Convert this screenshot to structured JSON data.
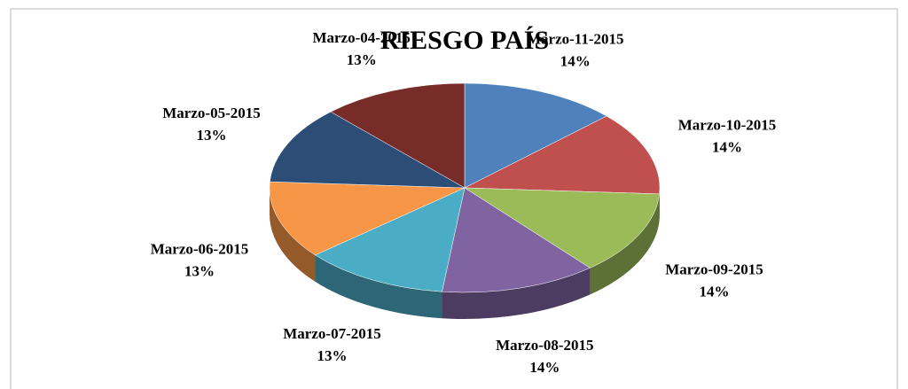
{
  "chart_data": {
    "type": "pie",
    "title": "RIESGO PAÍS",
    "categories": [
      "Marzo-11-2015",
      "Marzo-10-2015",
      "Marzo-09-2015",
      "Marzo-08-2015",
      "Marzo-07-2015",
      "Marzo-06-2015",
      "Marzo-05-2015",
      "Marzo-04-2015"
    ],
    "values": [
      14,
      14,
      14,
      14,
      13,
      13,
      13,
      13
    ],
    "value_labels": [
      "14%",
      "14%",
      "14%",
      "14%",
      "13%",
      "13%",
      "13%",
      "13%"
    ],
    "colors": [
      "#4f81bd",
      "#c0504d",
      "#9bbb59",
      "#8064a2",
      "#4bacc6",
      "#f79646",
      "#2c4d75",
      "#772c2a"
    ]
  }
}
